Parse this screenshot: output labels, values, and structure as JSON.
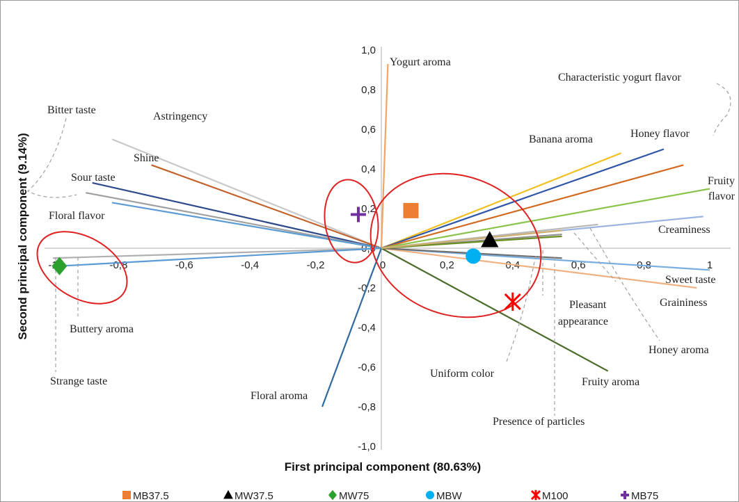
{
  "chart_data": {
    "type": "scatter",
    "title": "",
    "xlabel": "First principal component (80.63%)",
    "ylabel": "Second principal component (9.14%)",
    "xlim": [
      -1,
      1
    ],
    "ylim": [
      -1,
      1
    ],
    "x_ticks": [
      "-1",
      "-0,8",
      "-0,6",
      "-0,4",
      "-0,2",
      "0",
      "0,2",
      "0,4",
      "0,6",
      "0,8",
      "1"
    ],
    "y_ticks": [
      "1,0",
      "0,8",
      "0,6",
      "0,4",
      "0,2",
      "0,0",
      "-0,2",
      "-0,4",
      "-0,6",
      "-0,8",
      "-1,0"
    ],
    "grid": false,
    "legend_position": "bottom",
    "loadings": [
      {
        "label": "Yogurt aroma",
        "x": 0.02,
        "y": 0.93,
        "color": "#f4a460"
      },
      {
        "label": "Astringency",
        "x": -0.82,
        "y": 0.55,
        "color": "#c8c8c8"
      },
      {
        "label": "Shine",
        "x": -0.7,
        "y": 0.42,
        "color": "#c0622a"
      },
      {
        "label": "Sour taste",
        "x": -0.88,
        "y": 0.33,
        "color": "#2e4a8a"
      },
      {
        "label": "Bitter taste",
        "x": -0.9,
        "y": 0.28,
        "color": "#a0a0a0"
      },
      {
        "label": "Floral flavor",
        "x": -0.82,
        "y": 0.23,
        "color": "#5b9bd5"
      },
      {
        "label": "Strange taste",
        "x": -1.0,
        "y": -0.05,
        "color": "#b0b0b0"
      },
      {
        "label": "Buttery aroma",
        "x": -0.98,
        "y": -0.09,
        "color": "#5b9bd5"
      },
      {
        "label": "Floral aroma",
        "x": -0.18,
        "y": -0.8,
        "color": "#2e6aa0"
      },
      {
        "label": "Banana aroma",
        "x": 0.73,
        "y": 0.48,
        "color": "#f0c020"
      },
      {
        "label": "Honey flavor",
        "x": 0.86,
        "y": 0.5,
        "color": "#2e55a8"
      },
      {
        "label": "Characteristic yogurt flavor",
        "x": 0.92,
        "y": 0.42,
        "color": "#d2691e"
      },
      {
        "label": "Fruity flavor",
        "x": 1.0,
        "y": 0.3,
        "color": "#8bc34a"
      },
      {
        "label": "Creaminess",
        "x": 0.98,
        "y": 0.16,
        "color": "#9cb4e0"
      },
      {
        "label": "Honey aroma",
        "x": 0.66,
        "y": 0.12,
        "color": "#b8b8b8"
      },
      {
        "label": "Uniform color",
        "x": 0.55,
        "y": 0.07,
        "color": "#909090"
      },
      {
        "label": "Sweet taste",
        "x": 1.0,
        "y": -0.11,
        "color": "#7aaee0"
      },
      {
        "label": "Graininess",
        "x": 0.96,
        "y": -0.2,
        "color": "#f0b080"
      },
      {
        "label": "Pleasant appearance",
        "x": 0.55,
        "y": -0.05,
        "color": "#707070"
      },
      {
        "label": "Presence of particles",
        "x": 0.55,
        "y": 0.06,
        "color": "#6b8e23"
      },
      {
        "label": "Fruity aroma",
        "x": 0.69,
        "y": -0.62,
        "color": "#4a6b2a"
      },
      {
        "label": "",
        "x": 0.55,
        "y": 0.09,
        "color": "#d0b070"
      }
    ],
    "series": [
      {
        "name": "MB37.5",
        "x": 0.09,
        "y": 0.19,
        "marker": "square",
        "color": "#ed7d31"
      },
      {
        "name": "MW37.5",
        "x": 0.33,
        "y": 0.04,
        "marker": "triangle",
        "color": "#000000"
      },
      {
        "name": "MW75",
        "x": -0.98,
        "y": -0.09,
        "marker": "diamond",
        "color": "#2ca02c"
      },
      {
        "name": "MBW",
        "x": 0.28,
        "y": -0.04,
        "marker": "circle",
        "color": "#00b0f0"
      },
      {
        "name": "M100",
        "x": 0.4,
        "y": -0.27,
        "marker": "x",
        "color": "#ff0000"
      },
      {
        "name": "MB75",
        "x": -0.07,
        "y": 0.17,
        "marker": "plus",
        "color": "#7030a0"
      }
    ]
  }
}
